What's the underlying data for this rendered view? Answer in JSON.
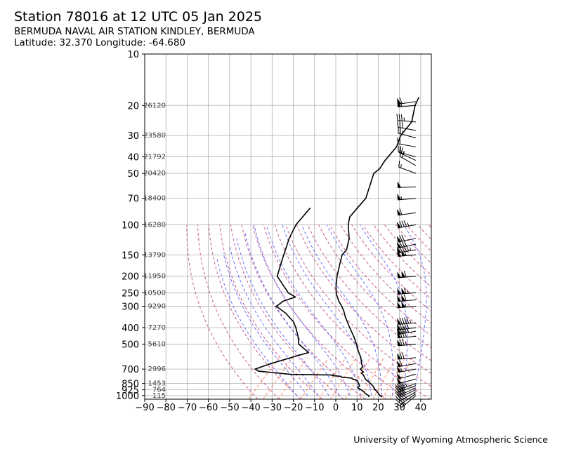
{
  "header": {
    "title": "Station 78016 at 12 UTC 05 Jan 2025",
    "station": "BERMUDA NAVAL AIR STATION KINDLEY, BERMUDA",
    "latlon": "Latitude: 32.370 Longitude: -64.680"
  },
  "footer": {
    "credit": "University of Wyoming Atmospheric Science"
  },
  "chart_data": {
    "type": "line",
    "title": "Station 78016 at 12 UTC 05 Jan 2025",
    "xlabel": "",
    "ylabel": "",
    "xlim": [
      -90,
      45
    ],
    "ylim": [
      1050,
      10
    ],
    "y_scale": "log",
    "skew_t": true,
    "grid": true,
    "x_ticks": [
      -90,
      -80,
      -70,
      -60,
      -50,
      -40,
      -30,
      -20,
      -10,
      0,
      10,
      20,
      30,
      40
    ],
    "x_tick_labels": [
      "−90",
      "−80",
      "−70",
      "−60",
      "−50",
      "−40",
      "−30",
      "−20",
      "−10",
      "0",
      "10",
      "20",
      "30",
      "40"
    ],
    "y_ticks": [
      1000,
      925,
      850,
      700,
      500,
      400,
      300,
      250,
      200,
      150,
      100,
      70,
      50,
      40,
      30,
      20,
      10
    ],
    "height_labels": [
      {
        "p": 1000,
        "label": "115"
      },
      {
        "p": 925,
        "label": "764"
      },
      {
        "p": 850,
        "label": "1453"
      },
      {
        "p": 700,
        "label": "2996"
      },
      {
        "p": 500,
        "label": "5610"
      },
      {
        "p": 400,
        "label": "7270"
      },
      {
        "p": 300,
        "label": "9290"
      },
      {
        "p": 250,
        "label": "10500"
      },
      {
        "p": 200,
        "label": "11950"
      },
      {
        "p": 150,
        "label": "13790"
      },
      {
        "p": 100,
        "label": "16280"
      },
      {
        "p": 70,
        "label": "18400"
      },
      {
        "p": 50,
        "label": "20420"
      },
      {
        "p": 40,
        "label": "21792"
      },
      {
        "p": 30,
        "label": "23580"
      },
      {
        "p": 20,
        "label": "26120"
      }
    ],
    "series": [
      {
        "role": "temperature",
        "color": "#000000",
        "points": [
          {
            "p": 1015,
            "t": 20.5
          },
          {
            "p": 1000,
            "t": 19.0
          },
          {
            "p": 975,
            "t": 17.6
          },
          {
            "p": 950,
            "t": 16.0
          },
          {
            "p": 925,
            "t": 14.2
          },
          {
            "p": 900,
            "t": 12.6
          },
          {
            "p": 875,
            "t": 11.0
          },
          {
            "p": 850,
            "t": 9.0
          },
          {
            "p": 830,
            "t": 7.3
          },
          {
            "p": 810,
            "t": 5.2
          },
          {
            "p": 790,
            "t": 3.7
          },
          {
            "p": 760,
            "t": 1.8
          },
          {
            "p": 740,
            "t": -0.2
          },
          {
            "p": 728,
            "t": 0.2
          },
          {
            "p": 710,
            "t": -1.6
          },
          {
            "p": 700,
            "t": -2.6
          },
          {
            "p": 680,
            "t": -2.6
          },
          {
            "p": 650,
            "t": -4.6
          },
          {
            "p": 600,
            "t": -7.8
          },
          {
            "p": 550,
            "t": -12.0
          },
          {
            "p": 500,
            "t": -16.2
          },
          {
            "p": 450,
            "t": -21.2
          },
          {
            "p": 400,
            "t": -27.2
          },
          {
            "p": 350,
            "t": -33.8
          },
          {
            "p": 320,
            "t": -37.8
          },
          {
            "p": 300,
            "t": -41.0
          },
          {
            "p": 280,
            "t": -44.8
          },
          {
            "p": 260,
            "t": -48.3
          },
          {
            "p": 250,
            "t": -50.0
          },
          {
            "p": 230,
            "t": -53.0
          },
          {
            "p": 200,
            "t": -57.4
          },
          {
            "p": 170,
            "t": -61.8
          },
          {
            "p": 150,
            "t": -65.1
          },
          {
            "p": 140,
            "t": -65.4
          },
          {
            "p": 120,
            "t": -69.6
          },
          {
            "p": 100,
            "t": -76.4
          },
          {
            "p": 90,
            "t": -79.4
          },
          {
            "p": 80,
            "t": -80.0
          },
          {
            "p": 70,
            "t": -80.6
          },
          {
            "p": 50,
            "t": -88.6
          },
          {
            "p": 47,
            "t": -88.0
          },
          {
            "p": 42,
            "t": -89.4
          },
          {
            "p": 35,
            "t": -90.4
          },
          {
            "p": 30,
            "t": -93.8
          },
          {
            "p": 25,
            "t": -95.0
          },
          {
            "p": 20,
            "t": -101.2
          },
          {
            "p": 18,
            "t": -103.2
          }
        ]
      },
      {
        "role": "dewpoint",
        "color": "#000000",
        "points": [
          {
            "p": 1015,
            "t": 14.4
          },
          {
            "p": 1000,
            "t": 13.8
          },
          {
            "p": 975,
            "t": 11.4
          },
          {
            "p": 950,
            "t": 9.8
          },
          {
            "p": 925,
            "t": 7.4
          },
          {
            "p": 900,
            "t": 5.0
          },
          {
            "p": 875,
            "t": 4.8
          },
          {
            "p": 850,
            "t": 3.4
          },
          {
            "p": 815,
            "t": 1.2
          },
          {
            "p": 800,
            "t": -1.6
          },
          {
            "p": 790,
            "t": -2.4
          },
          {
            "p": 780,
            "t": -7.6
          },
          {
            "p": 770,
            "t": -9.0
          },
          {
            "p": 765,
            "t": -12.6
          },
          {
            "p": 758,
            "t": -12.4
          },
          {
            "p": 752,
            "t": -32.6
          },
          {
            "p": 720,
            "t": -49.6
          },
          {
            "p": 700,
            "t": -52.2
          },
          {
            "p": 650,
            "t": -47.4
          },
          {
            "p": 580,
            "t": -38.0
          },
          {
            "p": 560,
            "t": -34.8
          },
          {
            "p": 500,
            "t": -43.4
          },
          {
            "p": 450,
            "t": -47.4
          },
          {
            "p": 400,
            "t": -52.6
          },
          {
            "p": 370,
            "t": -56.4
          },
          {
            "p": 330,
            "t": -64.0
          },
          {
            "p": 300,
            "t": -71.8
          },
          {
            "p": 280,
            "t": -71.0
          },
          {
            "p": 265,
            "t": -67.2
          },
          {
            "p": 250,
            "t": -72.6
          },
          {
            "p": 200,
            "t": -85.6
          },
          {
            "p": 170,
            "t": -89.6
          },
          {
            "p": 150,
            "t": -92.6
          },
          {
            "p": 120,
            "t": -97.8
          },
          {
            "p": 100,
            "t": -101.0
          },
          {
            "p": 80,
            "t": -102.2
          }
        ]
      }
    ],
    "background_lines": {
      "dry_adiabat_color": "#c04080",
      "moist_adiabat_color": "#5555ff",
      "mixing_ratio_color": "#ff7f50",
      "dry_adiabats_theta_c": [
        -40,
        -30,
        -20,
        -10,
        0,
        10,
        20,
        30,
        40,
        50,
        60,
        70,
        80,
        90,
        100,
        110,
        120,
        130,
        140,
        150,
        160,
        170,
        180,
        190,
        200,
        210,
        220
      ],
      "moist_adiabats_surface_c": [
        -20,
        -15,
        -10,
        -5,
        0,
        5,
        10,
        15,
        20,
        25,
        30,
        35
      ],
      "mixing_ratio_gkg": [
        0.1,
        0.2,
        0.4,
        1,
        2,
        3,
        5,
        8,
        12,
        16,
        20
      ]
    },
    "wind_barbs": [
      {
        "p": 1000,
        "dir": 230,
        "kt": 25
      },
      {
        "p": 975,
        "dir": 235,
        "kt": 30
      },
      {
        "p": 950,
        "dir": 240,
        "kt": 35
      },
      {
        "p": 925,
        "dir": 245,
        "kt": 40
      },
      {
        "p": 900,
        "dir": 245,
        "kt": 40
      },
      {
        "p": 875,
        "dir": 250,
        "kt": 40
      },
      {
        "p": 850,
        "dir": 250,
        "kt": 45
      },
      {
        "p": 800,
        "dir": 255,
        "kt": 50
      },
      {
        "p": 750,
        "dir": 255,
        "kt": 50
      },
      {
        "p": 700,
        "dir": 260,
        "kt": 55
      },
      {
        "p": 650,
        "dir": 260,
        "kt": 60
      },
      {
        "p": 600,
        "dir": 265,
        "kt": 70
      },
      {
        "p": 500,
        "dir": 265,
        "kt": 75
      },
      {
        "p": 450,
        "dir": 265,
        "kt": 80
      },
      {
        "p": 420,
        "dir": 260,
        "kt": 85
      },
      {
        "p": 400,
        "dir": 262,
        "kt": 90
      },
      {
        "p": 375,
        "dir": 265,
        "kt": 95
      },
      {
        "p": 300,
        "dir": 265,
        "kt": 105
      },
      {
        "p": 275,
        "dir": 265,
        "kt": 110
      },
      {
        "p": 250,
        "dir": 265,
        "kt": 115
      },
      {
        "p": 200,
        "dir": 265,
        "kt": 110
      },
      {
        "p": 150,
        "dir": 265,
        "kt": 105
      },
      {
        "p": 140,
        "dir": 260,
        "kt": 95
      },
      {
        "p": 130,
        "dir": 258,
        "kt": 80
      },
      {
        "p": 120,
        "dir": 258,
        "kt": 70
      },
      {
        "p": 100,
        "dir": 260,
        "kt": 85
      },
      {
        "p": 85,
        "dir": 262,
        "kt": 60
      },
      {
        "p": 70,
        "dir": 265,
        "kt": 55
      },
      {
        "p": 60,
        "dir": 268,
        "kt": 50
      },
      {
        "p": 50,
        "dir": 290,
        "kt": 15
      },
      {
        "p": 45,
        "dir": 300,
        "kt": 20
      },
      {
        "p": 42,
        "dir": 295,
        "kt": 25
      },
      {
        "p": 40,
        "dir": 285,
        "kt": 20
      },
      {
        "p": 35,
        "dir": 280,
        "kt": 20
      },
      {
        "p": 31,
        "dir": 285,
        "kt": 25
      },
      {
        "p": 28,
        "dir": 280,
        "kt": 30
      },
      {
        "p": 25,
        "dir": 275,
        "kt": 35
      },
      {
        "p": 20,
        "dir": 265,
        "kt": 55
      },
      {
        "p": 19,
        "dir": 262,
        "kt": 60
      }
    ]
  }
}
